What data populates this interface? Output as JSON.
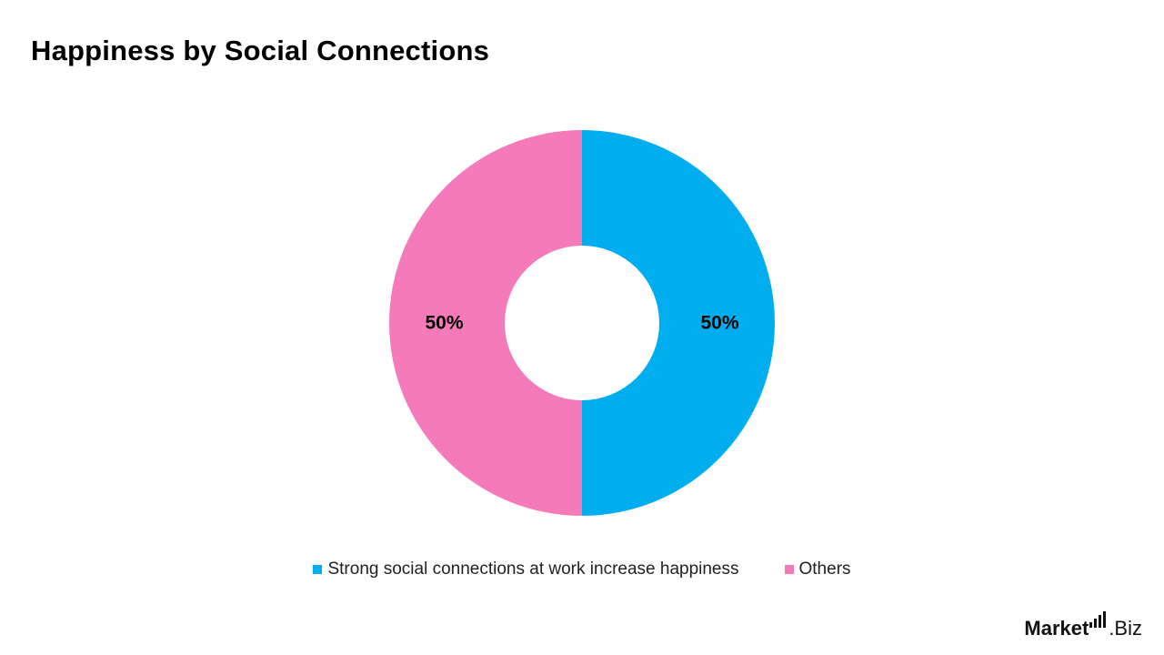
{
  "title": "Happiness by Social Connections",
  "chart_data": {
    "type": "pie",
    "donut": true,
    "title": "Happiness by Social Connections",
    "legend_position": "bottom",
    "slices": [
      {
        "name": "Strong social connections at work increase happiness",
        "value": 50,
        "label": "50%",
        "color": "#00AEEF"
      },
      {
        "name": "Others",
        "value": 50,
        "label": "50%",
        "color": "#F47AB9"
      }
    ]
  },
  "logo": {
    "bold": "Market",
    "light": ".Biz"
  }
}
